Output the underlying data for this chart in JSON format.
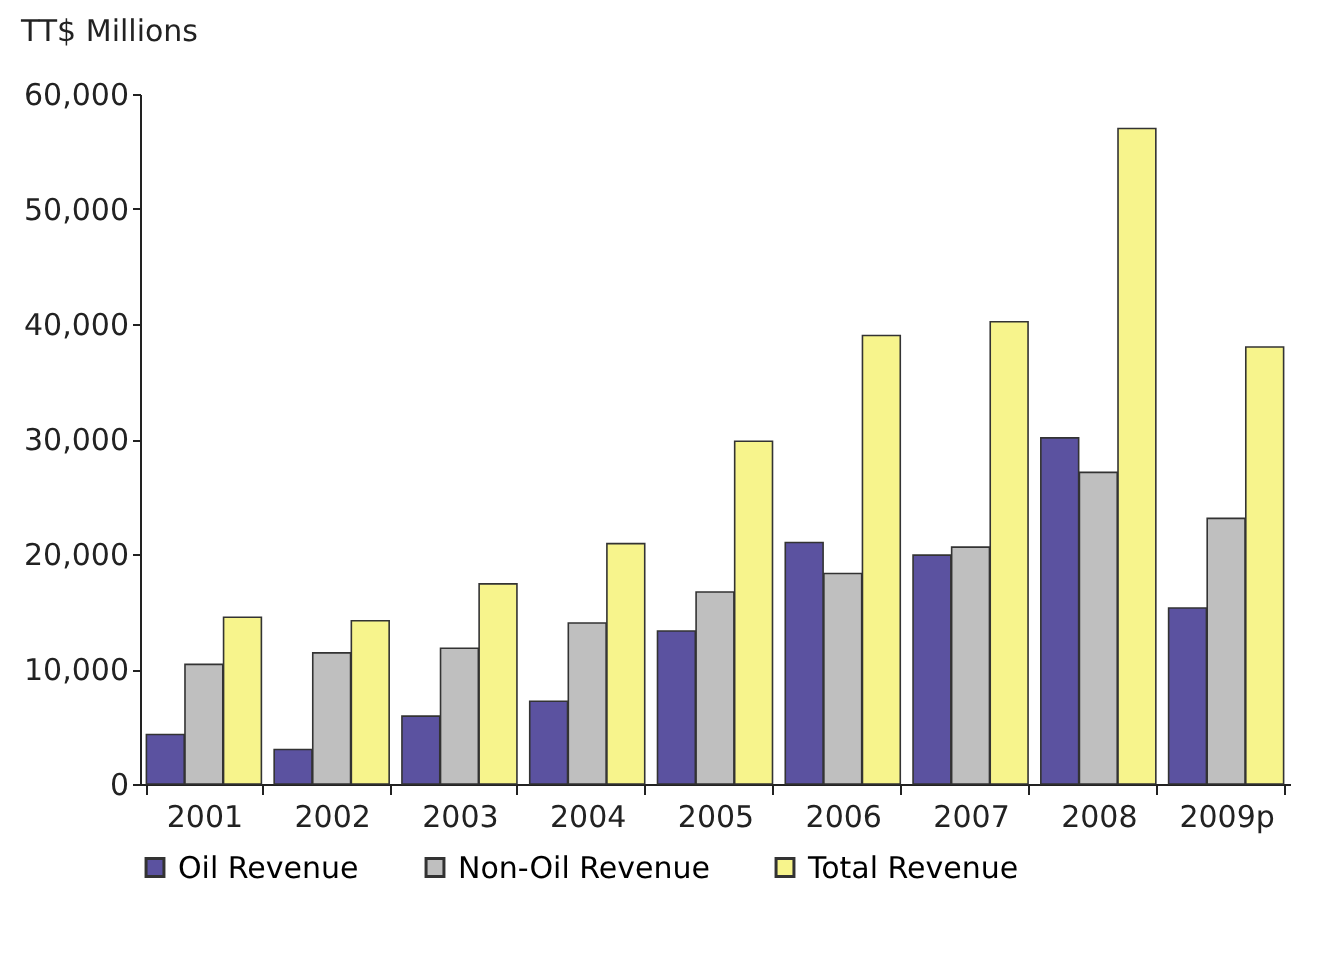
{
  "chart_data": {
    "type": "bar",
    "ylabel": "TT$ Millions",
    "categories": [
      "2001",
      "2002",
      "2003",
      "2004",
      "2005",
      "2006",
      "2007",
      "2008",
      "2009p"
    ],
    "series": [
      {
        "name": "Oil Revenue",
        "color": "#5b52a0",
        "values": [
          4300,
          3000,
          5900,
          7200,
          13300,
          21000,
          19900,
          30100,
          15300
        ]
      },
      {
        "name": "Non-Oil Revenue",
        "color": "#bfbfbf",
        "values": [
          10400,
          11400,
          11800,
          14000,
          16700,
          18300,
          20600,
          27100,
          23100
        ]
      },
      {
        "name": "Total Revenue",
        "color": "#f7f48c",
        "values": [
          14500,
          14200,
          17400,
          20900,
          29800,
          39000,
          40200,
          57000,
          38000
        ]
      }
    ],
    "ylim": [
      0,
      60000
    ],
    "yticks": [
      0,
      {
        "value": 10000,
        "label": "10,000"
      },
      {
        "value": 20000,
        "label": "20,000"
      },
      {
        "value": 30000,
        "label": "30,000"
      },
      {
        "value": 40000,
        "label": "40,000"
      },
      {
        "value": 50000,
        "label": "50,000"
      },
      {
        "value": 60000,
        "label": "60,000"
      }
    ],
    "grid": false,
    "legend": "bottom"
  }
}
